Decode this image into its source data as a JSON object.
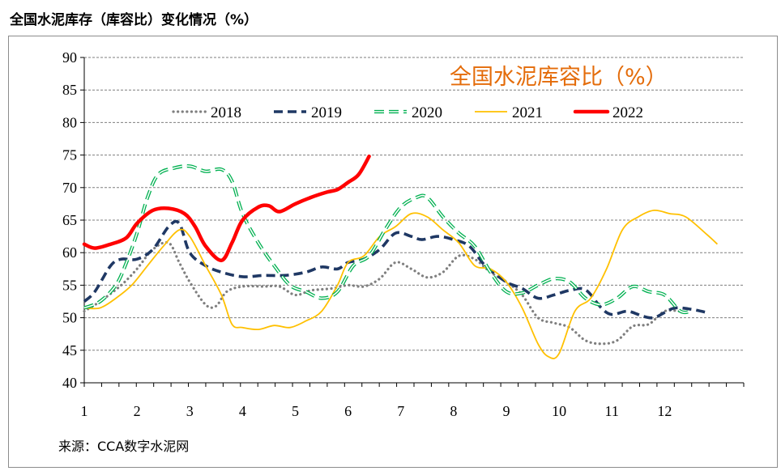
{
  "page_title": "全国水泥库存（库容比）变化情况（%）",
  "source_note": "来源：CCA数字水泥网",
  "chart_data": {
    "type": "line",
    "title": "全国水泥库容比（%）",
    "xlabel": "",
    "ylabel": "",
    "x_ticks": [
      "1",
      "2",
      "3",
      "4",
      "5",
      "6",
      "7",
      "8",
      "9",
      "10",
      "11",
      "12"
    ],
    "xlim": [
      1,
      13.5
    ],
    "ylim": [
      40,
      90
    ],
    "y_ticks": [
      40,
      45,
      50,
      55,
      60,
      65,
      70,
      75,
      80,
      85,
      90
    ],
    "grid": "horizontal-dashed",
    "legend_placement": "top",
    "series": [
      {
        "name": "2018",
        "color": "#7f7f7f",
        "style": "dotted",
        "points": [
          [
            1.0,
            51.0
          ],
          [
            1.3,
            52.5
          ],
          [
            1.7,
            55.0
          ],
          [
            2.0,
            57.5
          ],
          [
            2.3,
            60.5
          ],
          [
            2.6,
            61.5
          ],
          [
            2.8,
            58.5
          ],
          [
            3.0,
            55.5
          ],
          [
            3.3,
            52.0
          ],
          [
            3.5,
            51.8
          ],
          [
            3.7,
            54.0
          ],
          [
            4.0,
            54.8
          ],
          [
            4.4,
            54.8
          ],
          [
            4.7,
            54.8
          ],
          [
            5.0,
            53.5
          ],
          [
            5.3,
            54.2
          ],
          [
            5.7,
            54.5
          ],
          [
            6.0,
            55.0
          ],
          [
            6.3,
            54.8
          ],
          [
            6.6,
            56.0
          ],
          [
            6.9,
            58.5
          ],
          [
            7.2,
            57.5
          ],
          [
            7.5,
            56.2
          ],
          [
            7.8,
            57.0
          ],
          [
            8.1,
            59.5
          ],
          [
            8.4,
            59.0
          ],
          [
            8.7,
            57.0
          ],
          [
            9.0,
            55.5
          ],
          [
            9.3,
            53.5
          ],
          [
            9.6,
            50.0
          ],
          [
            9.9,
            49.2
          ],
          [
            10.2,
            48.5
          ],
          [
            10.5,
            46.5
          ],
          [
            10.8,
            46.0
          ],
          [
            11.1,
            46.5
          ],
          [
            11.4,
            48.7
          ],
          [
            11.7,
            49.0
          ],
          [
            12.0,
            51.0
          ],
          [
            12.3,
            51.0
          ]
        ]
      },
      {
        "name": "2019",
        "color": "#1f3864",
        "style": "dashed",
        "points": [
          [
            1.0,
            52.5
          ],
          [
            1.2,
            54.0
          ],
          [
            1.5,
            58.0
          ],
          [
            1.7,
            59.0
          ],
          [
            2.0,
            59.0
          ],
          [
            2.3,
            60.5
          ],
          [
            2.6,
            64.0
          ],
          [
            2.8,
            64.5
          ],
          [
            3.0,
            60.0
          ],
          [
            3.3,
            58.0
          ],
          [
            3.6,
            57.0
          ],
          [
            4.0,
            56.3
          ],
          [
            4.4,
            56.5
          ],
          [
            4.8,
            56.5
          ],
          [
            5.2,
            57.0
          ],
          [
            5.5,
            57.8
          ],
          [
            5.8,
            57.5
          ],
          [
            6.0,
            58.5
          ],
          [
            6.3,
            59.0
          ],
          [
            6.6,
            60.5
          ],
          [
            6.9,
            63.0
          ],
          [
            7.2,
            62.5
          ],
          [
            7.4,
            62.0
          ],
          [
            7.7,
            62.5
          ],
          [
            8.0,
            62.0
          ],
          [
            8.3,
            61.0
          ],
          [
            8.6,
            58.0
          ],
          [
            9.0,
            55.5
          ],
          [
            9.3,
            54.5
          ],
          [
            9.6,
            53.0
          ],
          [
            9.9,
            53.5
          ],
          [
            10.2,
            54.2
          ],
          [
            10.5,
            54.3
          ],
          [
            10.8,
            51.5
          ],
          [
            11.0,
            50.5
          ],
          [
            11.3,
            51.0
          ],
          [
            11.6,
            50.2
          ],
          [
            11.8,
            50.0
          ],
          [
            12.0,
            50.8
          ],
          [
            12.2,
            51.5
          ],
          [
            12.5,
            51.3
          ],
          [
            12.8,
            50.8
          ]
        ]
      },
      {
        "name": "2020",
        "color": "#00b050",
        "style": "dashed-outline",
        "points": [
          [
            1.0,
            51.5
          ],
          [
            1.3,
            52.5
          ],
          [
            1.6,
            55.0
          ],
          [
            1.8,
            58.5
          ],
          [
            2.0,
            63.0
          ],
          [
            2.2,
            68.5
          ],
          [
            2.4,
            72.0
          ],
          [
            2.7,
            73.0
          ],
          [
            3.0,
            73.3
          ],
          [
            3.3,
            72.5
          ],
          [
            3.6,
            72.8
          ],
          [
            3.8,
            71.0
          ],
          [
            4.0,
            66.0
          ],
          [
            4.3,
            61.5
          ],
          [
            4.6,
            58.0
          ],
          [
            4.9,
            55.0
          ],
          [
            5.2,
            54.0
          ],
          [
            5.5,
            53.0
          ],
          [
            5.8,
            54.0
          ],
          [
            6.1,
            58.0
          ],
          [
            6.4,
            59.5
          ],
          [
            6.7,
            63.5
          ],
          [
            7.0,
            67.0
          ],
          [
            7.3,
            68.5
          ],
          [
            7.5,
            68.5
          ],
          [
            7.8,
            65.5
          ],
          [
            8.1,
            63.0
          ],
          [
            8.4,
            61.0
          ],
          [
            8.7,
            57.0
          ],
          [
            9.0,
            54.0
          ],
          [
            9.3,
            53.8
          ],
          [
            9.6,
            55.0
          ],
          [
            9.9,
            56.0
          ],
          [
            10.2,
            55.5
          ],
          [
            10.5,
            53.0
          ],
          [
            10.8,
            52.0
          ],
          [
            11.1,
            53.0
          ],
          [
            11.4,
            54.8
          ],
          [
            11.7,
            54.0
          ],
          [
            12.0,
            53.5
          ],
          [
            12.3,
            51.0
          ],
          [
            12.5,
            51.0
          ]
        ]
      },
      {
        "name": "2021",
        "color": "#ffc000",
        "style": "solid",
        "points": [
          [
            1.0,
            51.5
          ],
          [
            1.3,
            51.5
          ],
          [
            1.6,
            53.0
          ],
          [
            1.9,
            55.0
          ],
          [
            2.2,
            58.0
          ],
          [
            2.5,
            61.0
          ],
          [
            2.8,
            63.5
          ],
          [
            3.0,
            62.5
          ],
          [
            3.3,
            58.0
          ],
          [
            3.6,
            53.5
          ],
          [
            3.8,
            49.0
          ],
          [
            4.0,
            48.5
          ],
          [
            4.3,
            48.2
          ],
          [
            4.6,
            48.8
          ],
          [
            4.9,
            48.5
          ],
          [
            5.2,
            49.5
          ],
          [
            5.5,
            51.0
          ],
          [
            5.8,
            55.0
          ],
          [
            6.0,
            58.5
          ],
          [
            6.3,
            59.5
          ],
          [
            6.6,
            62.5
          ],
          [
            6.9,
            64.0
          ],
          [
            7.2,
            66.0
          ],
          [
            7.5,
            65.5
          ],
          [
            7.8,
            63.5
          ],
          [
            8.1,
            61.5
          ],
          [
            8.4,
            58.0
          ],
          [
            8.7,
            57.5
          ],
          [
            9.0,
            55.5
          ],
          [
            9.3,
            51.5
          ],
          [
            9.6,
            46.0
          ],
          [
            9.8,
            44.0
          ],
          [
            10.0,
            44.5
          ],
          [
            10.3,
            51.0
          ],
          [
            10.6,
            53.0
          ],
          [
            10.9,
            57.5
          ],
          [
            11.2,
            63.5
          ],
          [
            11.5,
            65.5
          ],
          [
            11.8,
            66.5
          ],
          [
            12.1,
            66.0
          ],
          [
            12.4,
            65.5
          ],
          [
            12.8,
            62.8
          ],
          [
            13.0,
            61.3
          ]
        ]
      },
      {
        "name": "2022",
        "color": "#ff0000",
        "style": "thick-solid",
        "points": [
          [
            1.0,
            61.3
          ],
          [
            1.2,
            60.7
          ],
          [
            1.5,
            61.3
          ],
          [
            1.8,
            62.3
          ],
          [
            2.0,
            64.5
          ],
          [
            2.3,
            66.5
          ],
          [
            2.6,
            66.8
          ],
          [
            2.9,
            66.0
          ],
          [
            3.1,
            64.0
          ],
          [
            3.3,
            61.0
          ],
          [
            3.6,
            58.8
          ],
          [
            3.8,
            61.5
          ],
          [
            4.0,
            65.0
          ],
          [
            4.3,
            67.0
          ],
          [
            4.5,
            67.2
          ],
          [
            4.7,
            66.3
          ],
          [
            5.0,
            67.5
          ],
          [
            5.3,
            68.5
          ],
          [
            5.6,
            69.3
          ],
          [
            5.8,
            69.7
          ],
          [
            6.0,
            70.8
          ],
          [
            6.2,
            72.0
          ],
          [
            6.4,
            74.8
          ]
        ]
      }
    ]
  }
}
